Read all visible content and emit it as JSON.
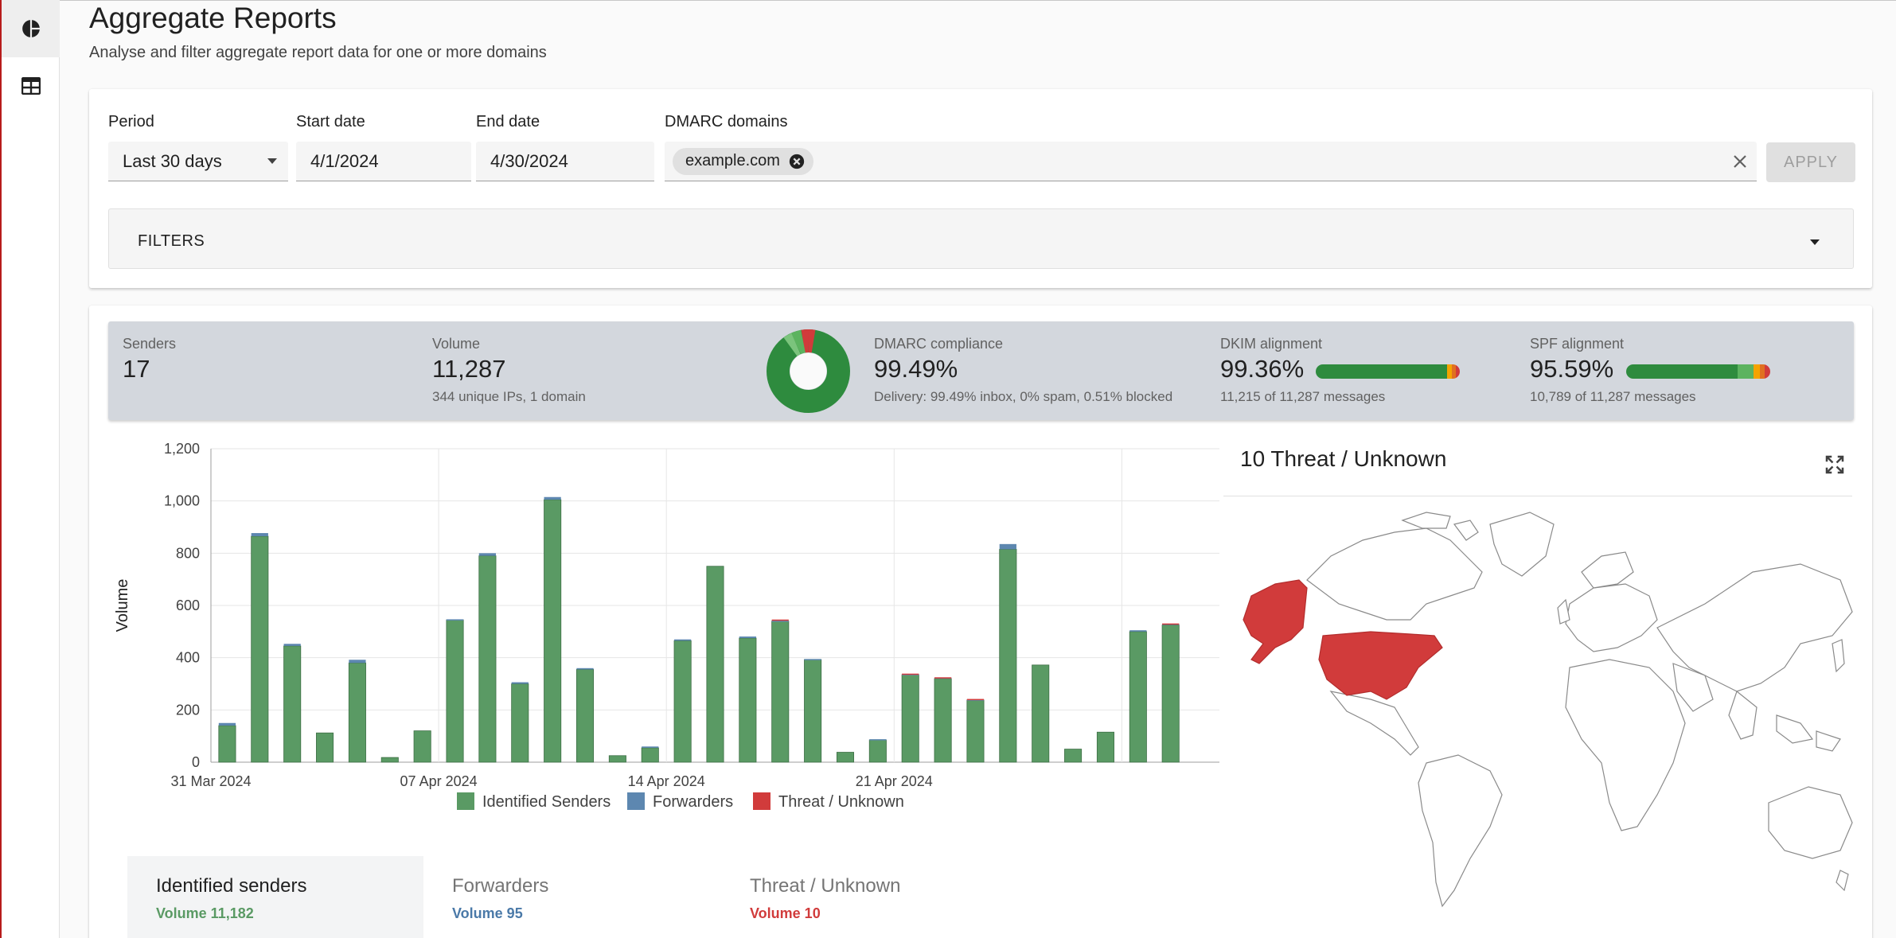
{
  "header": {
    "title": "Aggregate Reports",
    "subtitle": "Analyse and filter aggregate report data for one or more domains"
  },
  "sidebar": {
    "items": [
      {
        "name": "dashboard",
        "icon": "pie-chart-icon",
        "active": true
      },
      {
        "name": "table",
        "icon": "table-icon",
        "active": false
      }
    ]
  },
  "filters": {
    "period_label": "Period",
    "period_value": "Last 30 days",
    "start_label": "Start date",
    "start_value": "4/1/2024",
    "end_label": "End date",
    "end_value": "4/30/2024",
    "domains_label": "DMARC domains",
    "domains": [
      "example.com"
    ],
    "apply_label": "APPLY",
    "filters_label": "FILTERS"
  },
  "stats": {
    "senders_label": "Senders",
    "senders_value": "17",
    "volume_label": "Volume",
    "volume_value": "11,287",
    "volume_sub": "344 unique IPs, 1 domain",
    "dmarc_label": "DMARC compliance",
    "dmarc_value": "99.49%",
    "dmarc_sub": "Delivery: 99.49% inbox, 0% spam, 0.51% blocked",
    "dkim_label": "DKIM alignment",
    "dkim_value": "99.36%",
    "dkim_sub": "11,215 of 11,287 messages",
    "spf_label": "SPF alignment",
    "spf_value": "95.59%",
    "spf_sub": "10,789 of 11,287 messages"
  },
  "colors": {
    "identified": "#5a9a64",
    "forwarders": "#5d87b0",
    "threat": "#d13b3b",
    "donut_main": "#2e8b3e"
  },
  "chart_data": {
    "type": "bar",
    "stacked": true,
    "ylabel": "Volume",
    "ylim": [
      0,
      1200
    ],
    "yticks": [
      "0",
      "200",
      "400",
      "600",
      "800",
      "1,000",
      "1,200"
    ],
    "xtick_labels": [
      "31 Mar 2024",
      "07 Apr 2024",
      "14 Apr 2024",
      "21 Apr 2024"
    ],
    "categories": [
      "31 Mar",
      "01 Apr",
      "02 Apr",
      "03 Apr",
      "04 Apr",
      "05 Apr",
      "06 Apr",
      "07 Apr",
      "08 Apr",
      "09 Apr",
      "10 Apr",
      "11 Apr",
      "12 Apr",
      "13 Apr",
      "14 Apr",
      "15 Apr",
      "16 Apr",
      "17 Apr",
      "18 Apr",
      "19 Apr",
      "20 Apr",
      "21 Apr",
      "22 Apr",
      "23 Apr",
      "24 Apr",
      "25 Apr",
      "26 Apr",
      "27 Apr",
      "28 Apr",
      "29 Apr",
      "30 Apr"
    ],
    "series": [
      {
        "name": "Identified Senders",
        "values": [
          140,
          865,
          445,
          112,
          380,
          18,
          120,
          545,
          790,
          300,
          1005,
          355,
          25,
          55,
          465,
          750,
          475,
          540,
          393,
          38,
          85,
          335,
          320,
          238,
          815,
          372,
          50,
          115,
          500,
          525,
          0
        ]
      },
      {
        "name": "Forwarders",
        "values": [
          10,
          12,
          8,
          0,
          12,
          0,
          0,
          2,
          10,
          6,
          10,
          5,
          0,
          5,
          5,
          0,
          6,
          2,
          2,
          0,
          3,
          2,
          4,
          2,
          20,
          0,
          0,
          0,
          5,
          5,
          0
        ]
      },
      {
        "name": "Threat / Unknown",
        "values": [
          0,
          0,
          0,
          0,
          0,
          0,
          0,
          0,
          0,
          0,
          0,
          0,
          0,
          0,
          0,
          0,
          0,
          4,
          0,
          0,
          0,
          2,
          1,
          2,
          0,
          0,
          0,
          0,
          0,
          1,
          0
        ]
      }
    ],
    "legend": [
      "Identified Senders",
      "Forwarders",
      "Threat / Unknown"
    ]
  },
  "map": {
    "title": "10 Threat / Unknown"
  },
  "tabs": [
    {
      "label": "Identified senders",
      "sub": "Volume 11,182",
      "active": true
    },
    {
      "label": "Forwarders",
      "sub": "Volume 95",
      "active": false
    },
    {
      "label": "Threat / Unknown",
      "sub": "Volume 10",
      "active": false
    }
  ]
}
